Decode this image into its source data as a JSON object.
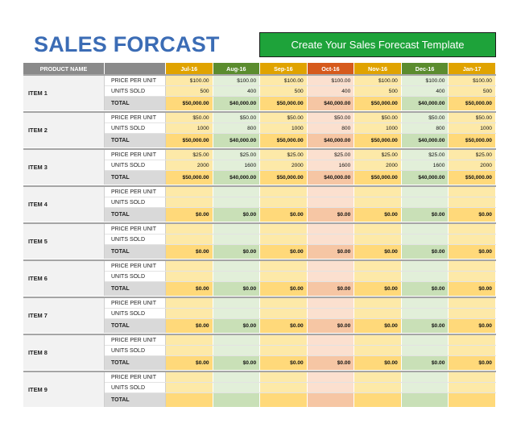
{
  "title": "SALES FORCAST",
  "banner": "Create Your Sales Forecast Template",
  "table": {
    "header_product": "PRODUCT NAME",
    "months": [
      {
        "label": "Jul-16",
        "head": "#e0a300",
        "light": "#fde9a8",
        "total": "#ffd97a"
      },
      {
        "label": "Aug-16",
        "head": "#5b8c2e",
        "light": "#e2efd9",
        "total": "#c9e0b7"
      },
      {
        "label": "Sep-16",
        "head": "#e0a300",
        "light": "#fde9a8",
        "total": "#ffd97a"
      },
      {
        "label": "Oct-16",
        "head": "#d65a1c",
        "light": "#fbe0cf",
        "total": "#f6c6a4"
      },
      {
        "label": "Nov-16",
        "head": "#e0a300",
        "light": "#fde9a8",
        "total": "#ffd97a"
      },
      {
        "label": "Dec-16",
        "head": "#5b8c2e",
        "light": "#e2efd9",
        "total": "#c9e0b7"
      },
      {
        "label": "Jan-17",
        "head": "#e0a300",
        "light": "#fde9a8",
        "total": "#ffd97a"
      }
    ],
    "row_labels": {
      "price": "PRICE PER UNIT",
      "units": "UNITS SOLD",
      "total": "TOTAL"
    },
    "items": [
      {
        "name": "ITEM 1",
        "price": [
          "$100.00",
          "$100.00",
          "$100.00",
          "$100.00",
          "$100.00",
          "$100.00",
          "$100.00"
        ],
        "units": [
          "500",
          "400",
          "500",
          "400",
          "500",
          "400",
          "500"
        ],
        "total": [
          "$50,000.00",
          "$40,000.00",
          "$50,000.00",
          "$40,000.00",
          "$50,000.00",
          "$40,000.00",
          "$50,000.00"
        ]
      },
      {
        "name": "ITEM 2",
        "price": [
          "$50.00",
          "$50.00",
          "$50.00",
          "$50.00",
          "$50.00",
          "$50.00",
          "$50.00"
        ],
        "units": [
          "1000",
          "800",
          "1000",
          "800",
          "1000",
          "800",
          "1000"
        ],
        "total": [
          "$50,000.00",
          "$40,000.00",
          "$50,000.00",
          "$40,000.00",
          "$50,000.00",
          "$40,000.00",
          "$50,000.00"
        ]
      },
      {
        "name": "ITEM 3",
        "price": [
          "$25.00",
          "$25.00",
          "$25.00",
          "$25.00",
          "$25.00",
          "$25.00",
          "$25.00"
        ],
        "units": [
          "2000",
          "1600",
          "2000",
          "1600",
          "2000",
          "1600",
          "2000"
        ],
        "total": [
          "$50,000.00",
          "$40,000.00",
          "$50,000.00",
          "$40,000.00",
          "$50,000.00",
          "$40,000.00",
          "$50,000.00"
        ]
      },
      {
        "name": "ITEM 4",
        "price": [
          "",
          "",
          "",
          "",
          "",
          "",
          ""
        ],
        "units": [
          "",
          "",
          "",
          "",
          "",
          "",
          ""
        ],
        "total": [
          "$0.00",
          "$0.00",
          "$0.00",
          "$0.00",
          "$0.00",
          "$0.00",
          "$0.00"
        ]
      },
      {
        "name": "ITEM 5",
        "price": [
          "",
          "",
          "",
          "",
          "",
          "",
          ""
        ],
        "units": [
          "",
          "",
          "",
          "",
          "",
          "",
          ""
        ],
        "total": [
          "$0.00",
          "$0.00",
          "$0.00",
          "$0.00",
          "$0.00",
          "$0.00",
          "$0.00"
        ]
      },
      {
        "name": "ITEM 6",
        "price": [
          "",
          "",
          "",
          "",
          "",
          "",
          ""
        ],
        "units": [
          "",
          "",
          "",
          "",
          "",
          "",
          ""
        ],
        "total": [
          "$0.00",
          "$0.00",
          "$0.00",
          "$0.00",
          "$0.00",
          "$0.00",
          "$0.00"
        ]
      },
      {
        "name": "ITEM 7",
        "price": [
          "",
          "",
          "",
          "",
          "",
          "",
          ""
        ],
        "units": [
          "",
          "",
          "",
          "",
          "",
          "",
          ""
        ],
        "total": [
          "$0.00",
          "$0.00",
          "$0.00",
          "$0.00",
          "$0.00",
          "$0.00",
          "$0.00"
        ]
      },
      {
        "name": "ITEM 8",
        "price": [
          "",
          "",
          "",
          "",
          "",
          "",
          ""
        ],
        "units": [
          "",
          "",
          "",
          "",
          "",
          "",
          ""
        ],
        "total": [
          "$0.00",
          "$0.00",
          "$0.00",
          "$0.00",
          "$0.00",
          "$0.00",
          "$0.00"
        ]
      },
      {
        "name": "ITEM 9",
        "price": [
          "",
          "",
          "",
          "",
          "",
          "",
          ""
        ],
        "units": [
          "",
          "",
          "",
          "",
          "",
          "",
          ""
        ],
        "total": [
          "",
          "",
          "",
          "",
          "",
          "",
          ""
        ]
      }
    ]
  }
}
